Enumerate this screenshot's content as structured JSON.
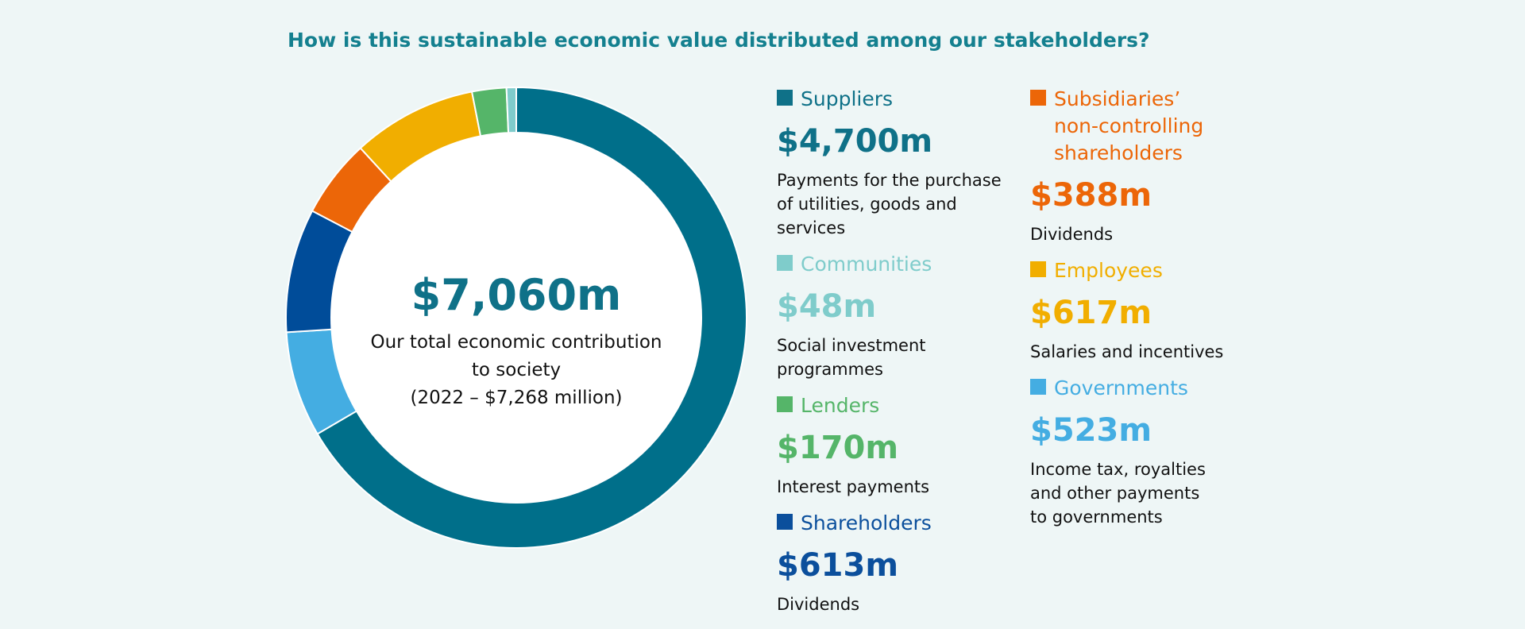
{
  "title": "How is this sustainable economic value distributed among our stakeholders?",
  "center": {
    "total": "$7,060m",
    "line1": "Our total economic contribution",
    "line2": "to society",
    "line3": "(2022 – $7,268 million)"
  },
  "chart_data": {
    "type": "pie",
    "title": "",
    "categories": [
      "Suppliers",
      "Governments",
      "Shareholders",
      "Subsidiaries’ non-controlling shareholders",
      "Employees",
      "Lenders",
      "Communities"
    ],
    "values": [
      4700,
      523,
      613,
      388,
      617,
      170,
      48
    ],
    "colors": [
      "#006f8a",
      "#44ade2",
      "#004c99",
      "#ec6608",
      "#f1ae00",
      "#55b569",
      "#7fcccb"
    ],
    "donut": true,
    "total_label": "$7,060m"
  },
  "legend": {
    "col1": [
      {
        "name": "Suppliers",
        "value": "$4,700m",
        "note": [
          "Payments for the purchase",
          "of utilities, goods and",
          "services"
        ],
        "color": "#0f7188"
      },
      {
        "name": "Communities",
        "value": "$48m",
        "note": [
          "Social investment",
          "programmes"
        ],
        "color": "#7fcccb"
      },
      {
        "name": "Lenders",
        "value": "$170m",
        "note": [
          "Interest payments"
        ],
        "color": "#55b569"
      },
      {
        "name": "Shareholders",
        "value": "$613m",
        "note": [
          "Dividends"
        ],
        "color": "#0b4f9c"
      }
    ],
    "col2": [
      {
        "name": [
          "Subsidiaries’",
          "non-controlling",
          "shareholders"
        ],
        "value": "$388m",
        "note": [
          "Dividends"
        ],
        "color": "#ec6608"
      },
      {
        "name": "Employees",
        "value": "$617m",
        "note": [
          "Salaries and incentives"
        ],
        "color": "#f1ae00"
      },
      {
        "name": "Governments",
        "value": "$523m",
        "note": [
          "Income tax, royalties",
          "and other payments",
          "to governments"
        ],
        "color": "#44ade2"
      }
    ]
  }
}
